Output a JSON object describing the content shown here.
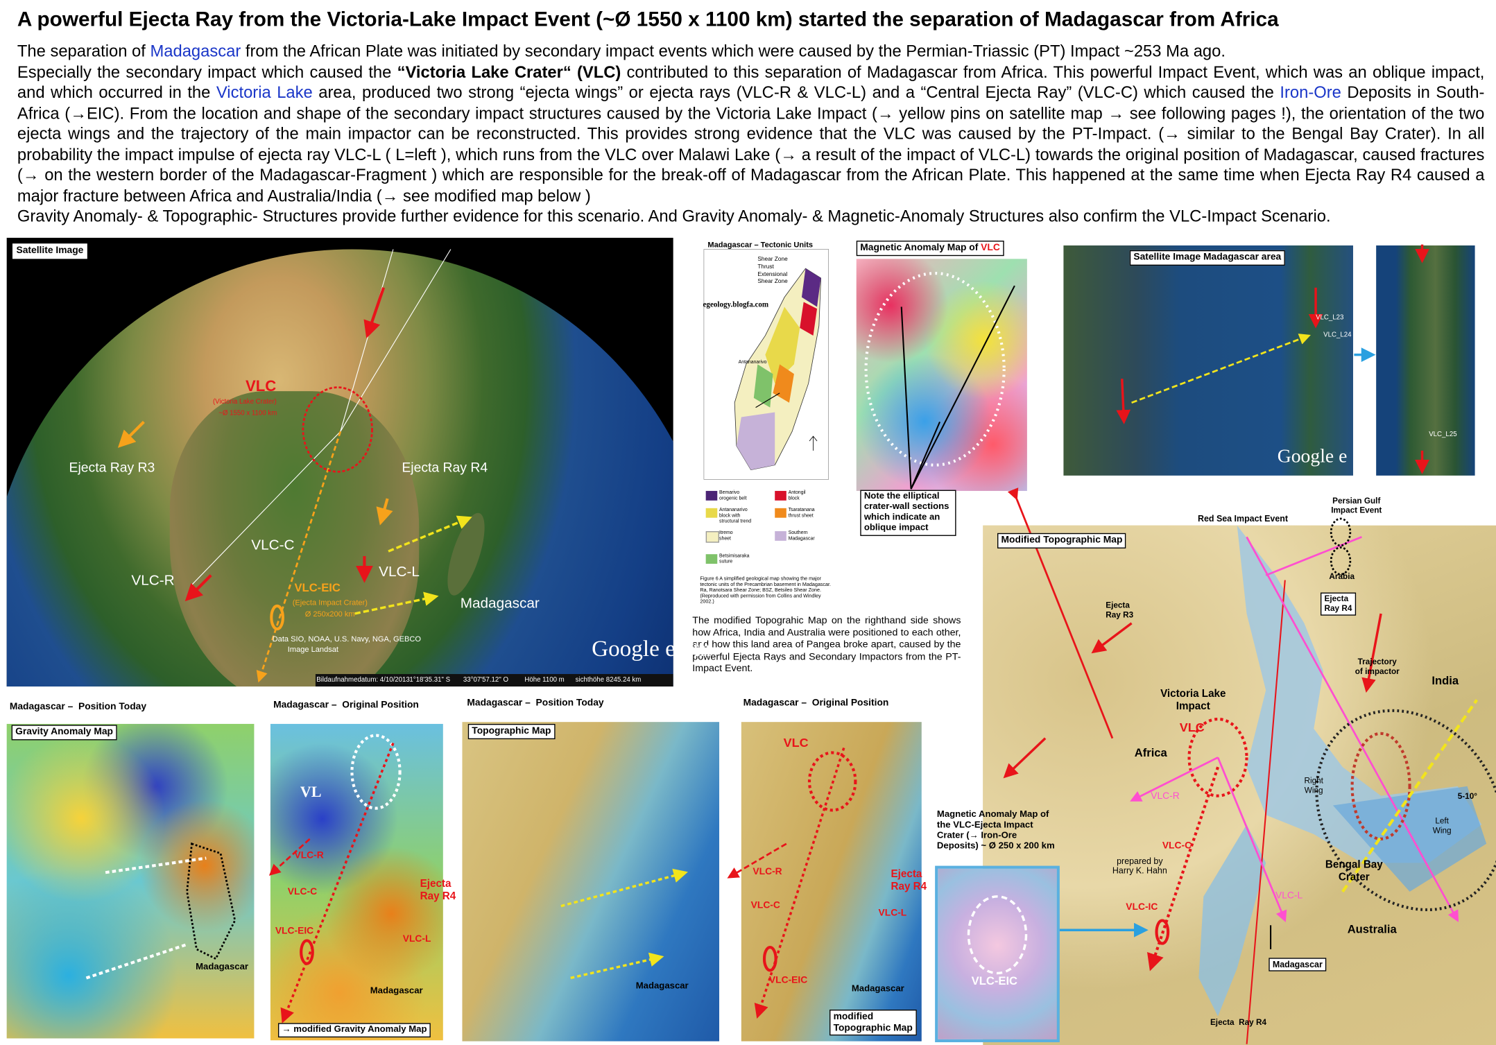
{
  "title": "A powerful Ejecta Ray from the Victoria-Lake Impact Event (~Ø 1550 x 1100 km) started the separation of Madagascar from Africa",
  "intro": [
    "The separation of ",
    "Madagascar",
    " from the African Plate was initiated by secondary impact events which were caused by the Permian-Triassic (PT) Impact ~253 Ma ago.",
    "Especially the secondary impact which caused the ",
    "“Victoria Lake Crater“ (VLC)",
    " contributed to this separation of Madagascar from Africa. This powerful Impact Event, which was an oblique impact, and which occurred in the ",
    "Victoria Lake",
    " area, produced two strong “ejecta wings” or ejecta rays (VLC-R & VLC-L) and a  “Central Ejecta Ray” (VLC-C) which caused the ",
    "Iron-Ore",
    " Deposits in South-Africa (→EIC). From the location and shape of the secondary impact structures caused by the Victoria Lake Impact (→ yellow pins on satellite map → see following pages !), the orientation of the two ejecta wings and the trajectory of the main impactor can be reconstructed. This provides strong evidence that the VLC was caused by the PT-Impact. (→ similar to the Bengal Bay Crater).  In all probability the impact impulse of ejecta ray VLC-L ( L=left ), which runs from the VLC over Malawi Lake (→ a result of the impact of VLC-L) towards the original position of Madagascar, caused fractures (→ on the western border of the Madagascar-Fragment ) which are responsible for the break-off of Madagascar from the African Plate. This happened at the same time when Ejecta Ray R4 caused a major fracture between Africa and Australia/India (→ see modified map below )",
    "Gravity Anomaly- & Topographic- Structures provide further evidence for this scenario. And Gravity Anomaly- & Magnetic-Anomaly Structures also confirm the VLC-Impact Scenario."
  ],
  "satellite": {
    "heading": "Satellite Image",
    "vlc": "VLC",
    "vlc_name": "(Victoria Lake Crater)",
    "vlc_size": "~Ø 1550 x 1100 km",
    "r3": "Ejecta Ray R3",
    "r4": "Ejecta Ray R4",
    "vlc_c": "VLC-C",
    "vlc_r": "VLC-R",
    "vlc_l": "VLC-L",
    "eic": "VLC-EIC",
    "eic_name": "(Ejecta Impact Crater)",
    "eic_size": "Ø 250x200 km",
    "madagascar": "Madagascar",
    "credits": [
      "Data SIO, NOAA, U.S. Navy, NGA, GEBCO",
      "Image Landsat"
    ],
    "logo": "Google earth",
    "status": [
      "Bildaufnahmedatum: 4/10/2013",
      "1°18'35.31\" S",
      "33°07'57.12\" O",
      "Höhe 1100 m",
      "sichthöhe 8245.24 km"
    ]
  },
  "tectonic": {
    "heading": "Madagascar – Tectonic Units",
    "legend_lines": [
      "Shear Zone",
      "Thrust",
      "Extensional\nShear Zone"
    ],
    "source": "egeology.blogfa.com",
    "city": "Antananarivo",
    "units": [
      "Bemarivo\norogenic belt",
      "Antongil\nblock",
      "Antananarivo\nblock with\nstructural trend",
      "Tsaratanana\nthrust sheet",
      "Itremo\nsheet",
      "Southern\nMadagascar",
      "Betsimisaraka\nsuture"
    ],
    "caption": "Figure 6  A simplified geological map showing the major tectonic units of the Precambrian basement in Madagascar. Ra, Ranotsara Shear Zone; BSZ, Betsileo Shear Zone. (Reproduced with permission from Collins and Windley 2002.)"
  },
  "magnetic": {
    "heading": "Magnetic Anomaly Map of ",
    "heading_vlc": "VLC",
    "note": "Note the elliptical crater-wall sections which indicate an oblique impact"
  },
  "madagascar_satellite": {
    "heading": "Satellite Image Madagascar area",
    "logo": "Google e",
    "pins": [
      "VLC_L23",
      "VLC_L24",
      "VLC_L25"
    ]
  },
  "topo_note": "The modified Topograhic Map on the righthand side shows how Africa, India and Australia were positioned to each other, and how this land area of  Pangea broke apart,  caused by the powerful  Ejecta Rays  and Secondary Impactors from the PT-Impact Event.",
  "modified_map": {
    "heading": "Modified Topographic Map",
    "red_sea": "Red Sea Impact Event",
    "persian_gulf": "Persian Gulf\nImpact Event",
    "arabia": "Arabia",
    "r4_top": "Ejecta\nRay R4",
    "r3": "Ejecta\nRay R3",
    "trajectory": "Trajectory\nof impactor",
    "india": "India",
    "victoria": "Victoria Lake\nImpact",
    "vlc": "VLC",
    "africa": "Africa",
    "right_wing": "Right\nWing",
    "vlc_r": "VLC-R",
    "left_wing": "Left\nWing",
    "angle": "5-10°",
    "vlc_c": "VLC-C",
    "author": "prepared by\nHarry K. Hahn",
    "bengal": "Bengal Bay\nCrater",
    "vlc_l": "VLC-L",
    "vlc_ic": "VLC-IC",
    "australia": "Australia",
    "madagascar": "Madagascar",
    "r4_bottom": "Ejecta  Ray R4"
  },
  "gravity_today": {
    "heading": "Madagascar –  Position Today",
    "map": "Gravity Anomaly Map",
    "madagascar": "Madagascar"
  },
  "gravity_original": {
    "heading": "Madagascar –  Original Position",
    "vl": "VL",
    "vlc_r": "VLC-R",
    "vlc_c": "VLC-C",
    "eic": "VLC-EIC",
    "r4": "Ejecta\nRay R4",
    "vlc_l": "VLC-L",
    "madagascar": "Madagascar",
    "caption": "→ modified Gravity Anomaly Map"
  },
  "topo_today": {
    "heading": "Madagascar –  Position Today",
    "map": "Topographic Map",
    "madagascar": "Madagascar"
  },
  "topo_original": {
    "heading": "Madagascar –  Original Position",
    "vlc": "VLC",
    "vlc_r": "VLC-R",
    "vlc_c": "VLC-C",
    "eic": "VLC-EIC",
    "r4": "Ejecta\nRay R4",
    "vlc_l": "VLC-L",
    "madagascar": "Madagascar",
    "caption": "modified\nTopographic Map"
  },
  "eic_magnetic": {
    "heading": "Magnetic Anomaly Map of the VLC-Ejecta Impact Crater (→ Iron-Ore Deposits) ~ Ø 250 x 200 km",
    "label": "VLC-EIC"
  }
}
